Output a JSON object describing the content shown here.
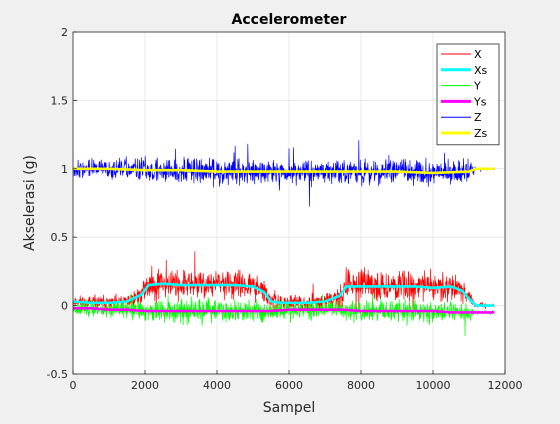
{
  "chart_data": {
    "type": "line",
    "title": "Accelerometer",
    "xlabel": "Sampel",
    "ylabel": "Akselerasi (g)",
    "xlim": [
      0,
      12000
    ],
    "ylim": [
      -0.5,
      2
    ],
    "xticks": [
      0,
      2000,
      4000,
      6000,
      8000,
      10000,
      12000
    ],
    "xtick_labels": [
      "0",
      "2000",
      "4000",
      "6000",
      "8000",
      "10000",
      "12000"
    ],
    "yticks": [
      -0.5,
      0,
      0.5,
      1,
      1.5,
      2
    ],
    "ytick_labels": [
      "-0.5",
      "0",
      "0.5",
      "1",
      "1.5",
      "2"
    ],
    "grid": true,
    "legend_position": "top-right",
    "series": [
      {
        "name": "X",
        "color": "#ff0000",
        "style": "raw",
        "x": [
          0,
          500,
          1000,
          1500,
          1900,
          2100,
          2500,
          3000,
          3500,
          4000,
          4500,
          5000,
          5300,
          5500,
          5800,
          6000,
          6500,
          7000,
          7400,
          7600,
          8000,
          8500,
          9000,
          9500,
          10000,
          10500,
          10800,
          11000,
          11200,
          11700
        ],
        "values": [
          0.03,
          0.02,
          0.02,
          0.03,
          0.08,
          0.15,
          0.17,
          0.16,
          0.15,
          0.16,
          0.15,
          0.15,
          0.1,
          0.03,
          0.02,
          0.02,
          0.02,
          0.03,
          0.06,
          0.15,
          0.15,
          0.14,
          0.15,
          0.15,
          0.14,
          0.15,
          0.12,
          0.05,
          0.0,
          0.0
        ],
        "noise": [
          0.07,
          0.07,
          0.07,
          0.07,
          0.1,
          0.14,
          0.16,
          0.15,
          0.14,
          0.15,
          0.14,
          0.14,
          0.12,
          0.09,
          0.09,
          0.08,
          0.08,
          0.08,
          0.12,
          0.15,
          0.15,
          0.15,
          0.15,
          0.16,
          0.15,
          0.14,
          0.12,
          0.08,
          0.03,
          0.02
        ]
      },
      {
        "name": "Xs",
        "color": "#00ffff",
        "style": "smooth",
        "x": [
          0,
          500,
          1000,
          1500,
          1900,
          2100,
          2500,
          3000,
          3500,
          4000,
          4500,
          5000,
          5300,
          5500,
          5800,
          6000,
          6500,
          7000,
          7400,
          7600,
          8000,
          8500,
          9000,
          9500,
          10000,
          10500,
          10800,
          11000,
          11200,
          11700
        ],
        "values": [
          0.03,
          0.02,
          0.02,
          0.03,
          0.08,
          0.15,
          0.16,
          0.15,
          0.15,
          0.15,
          0.15,
          0.14,
          0.1,
          0.03,
          0.02,
          0.02,
          0.02,
          0.03,
          0.07,
          0.14,
          0.14,
          0.14,
          0.14,
          0.14,
          0.13,
          0.14,
          0.11,
          0.05,
          0.0,
          0.0
        ]
      },
      {
        "name": "Y",
        "color": "#00ff00",
        "style": "raw",
        "x": [
          0,
          500,
          1000,
          1500,
          2000,
          2500,
          3000,
          3500,
          4000,
          4500,
          5000,
          5500,
          6000,
          6500,
          7000,
          7500,
          8000,
          8500,
          9000,
          9500,
          10000,
          10500,
          11000,
          11200,
          11700
        ],
        "values": [
          -0.02,
          -0.02,
          -0.03,
          -0.03,
          -0.04,
          -0.04,
          -0.04,
          -0.04,
          -0.04,
          -0.04,
          -0.04,
          -0.04,
          -0.03,
          -0.03,
          -0.03,
          -0.03,
          -0.04,
          -0.04,
          -0.04,
          -0.04,
          -0.04,
          -0.05,
          -0.05,
          -0.05,
          -0.05
        ],
        "noise": [
          0.08,
          0.08,
          0.08,
          0.09,
          0.1,
          0.12,
          0.12,
          0.12,
          0.12,
          0.12,
          0.11,
          0.1,
          0.09,
          0.09,
          0.09,
          0.1,
          0.12,
          0.12,
          0.12,
          0.12,
          0.12,
          0.11,
          0.08,
          0.02,
          0.02
        ]
      },
      {
        "name": "Ys",
        "color": "#ff00ff",
        "style": "smooth",
        "x": [
          0,
          500,
          1000,
          1500,
          2000,
          2500,
          3000,
          3500,
          4000,
          4500,
          5000,
          5500,
          6000,
          6500,
          7000,
          7500,
          8000,
          8500,
          9000,
          9500,
          10000,
          10500,
          11000,
          11200,
          11700
        ],
        "values": [
          -0.02,
          -0.02,
          -0.03,
          -0.03,
          -0.04,
          -0.04,
          -0.04,
          -0.04,
          -0.04,
          -0.04,
          -0.04,
          -0.04,
          -0.03,
          -0.03,
          -0.03,
          -0.03,
          -0.04,
          -0.04,
          -0.04,
          -0.04,
          -0.04,
          -0.05,
          -0.05,
          -0.05,
          -0.05
        ]
      },
      {
        "name": "Z",
        "color": "#0000ff",
        "style": "raw",
        "x": [
          0,
          1000,
          2000,
          3000,
          4000,
          5000,
          6000,
          7000,
          8000,
          9000,
          10000,
          11000,
          11200,
          11700
        ],
        "values": [
          1.0,
          1.0,
          0.99,
          0.99,
          0.98,
          0.98,
          0.98,
          0.98,
          0.98,
          0.98,
          0.97,
          0.98,
          1.0,
          1.0
        ],
        "noise": [
          0.09,
          0.09,
          0.13,
          0.14,
          0.14,
          0.13,
          0.12,
          0.12,
          0.13,
          0.14,
          0.14,
          0.12,
          0.01,
          0.01
        ]
      },
      {
        "name": "Zs",
        "color": "#ffff00",
        "style": "smooth",
        "x": [
          0,
          1000,
          2000,
          3000,
          4000,
          5000,
          6000,
          7000,
          8000,
          9000,
          10000,
          11000,
          11200,
          11700
        ],
        "values": [
          1.0,
          1.0,
          0.99,
          0.99,
          0.98,
          0.98,
          0.98,
          0.98,
          0.98,
          0.98,
          0.97,
          0.98,
          1.0,
          1.0
        ]
      }
    ]
  }
}
